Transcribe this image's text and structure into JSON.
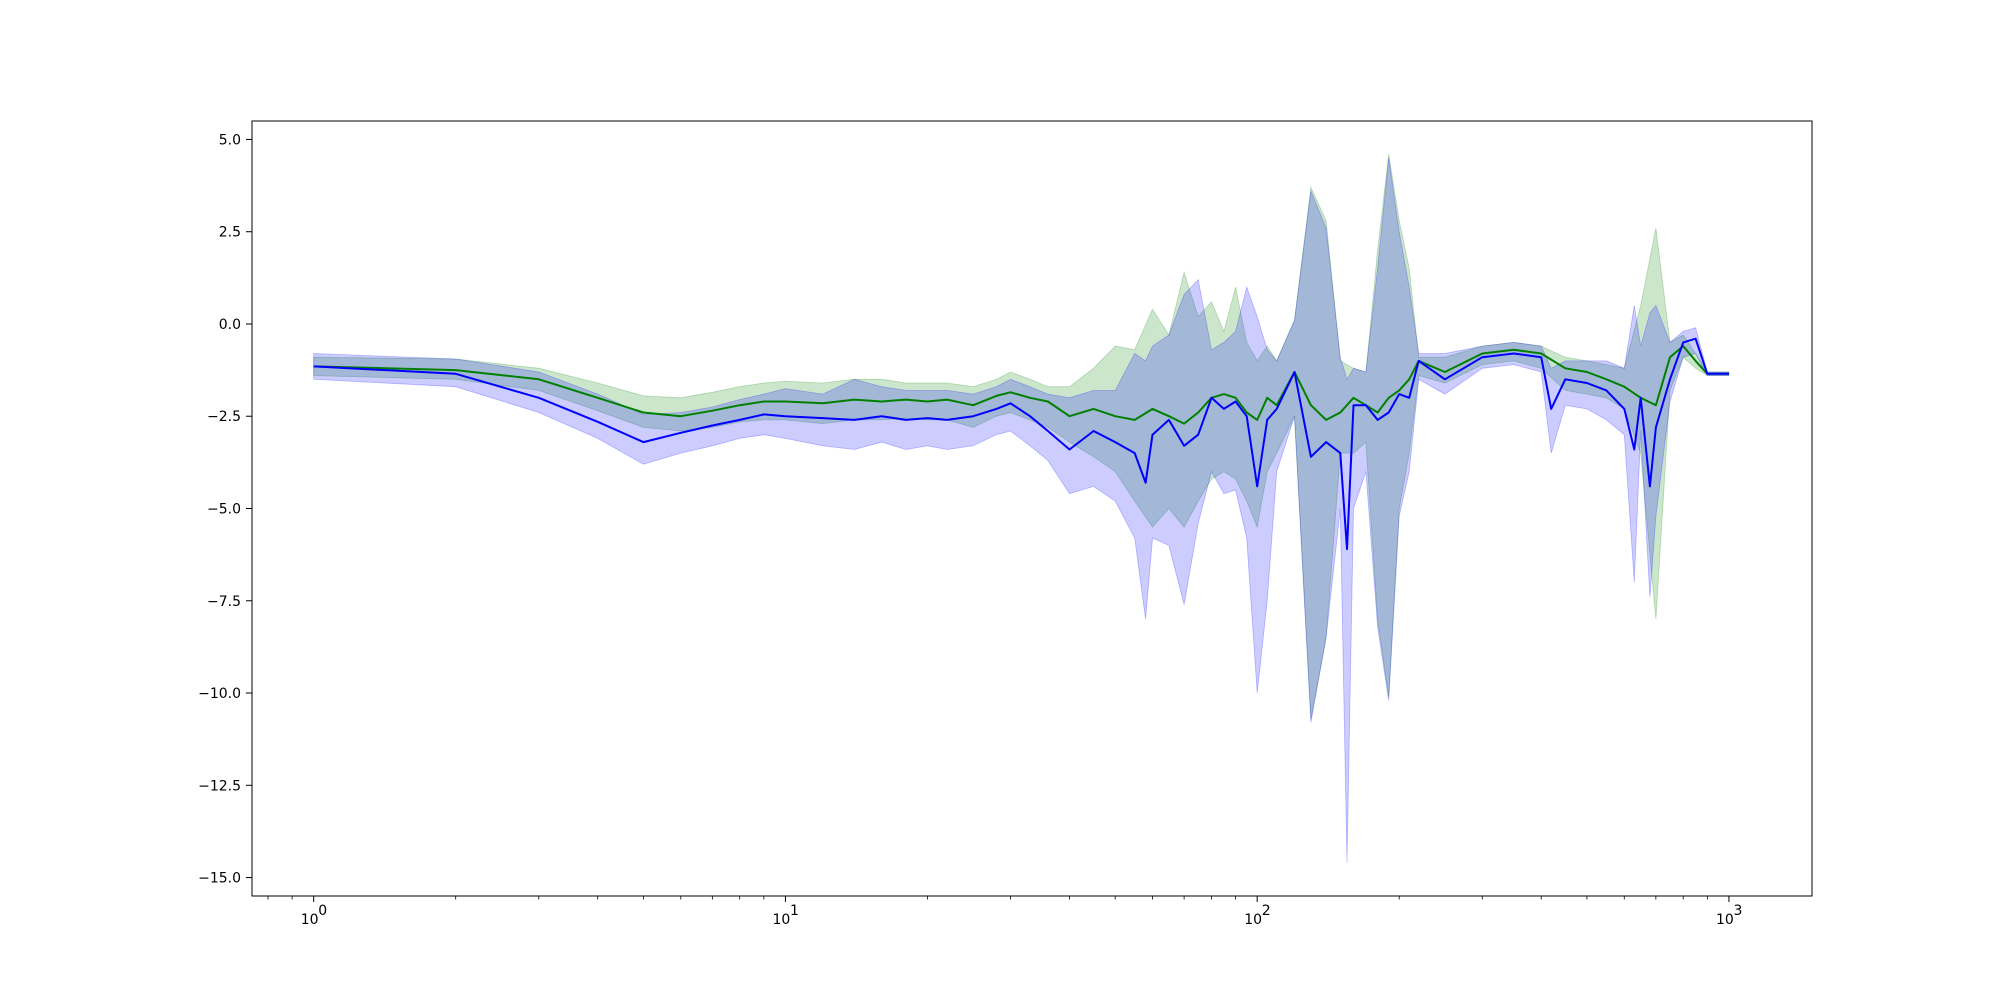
{
  "chart_data": {
    "type": "line",
    "title": "",
    "xlabel": "",
    "ylabel": "",
    "x_scale": "log",
    "xlim": [
      0.74,
      1500
    ],
    "ylim": [
      -15.5,
      5.5
    ],
    "grid": false,
    "legend": "none",
    "x_ticks": [
      {
        "value": 1,
        "label": "10",
        "exp": "0"
      },
      {
        "value": 10,
        "label": "10",
        "exp": "1"
      },
      {
        "value": 100,
        "label": "10",
        "exp": "2"
      },
      {
        "value": 1000,
        "label": "10",
        "exp": "3"
      }
    ],
    "y_ticks": [
      {
        "value": 5.0,
        "label": "5.0"
      },
      {
        "value": 2.5,
        "label": "2.5"
      },
      {
        "value": 0.0,
        "label": "0.0"
      },
      {
        "value": -2.5,
        "label": "−2.5"
      },
      {
        "value": -5.0,
        "label": "−5.0"
      },
      {
        "value": -7.5,
        "label": "−7.5"
      },
      {
        "value": -10.0,
        "label": "−10.0"
      },
      {
        "value": -12.5,
        "label": "−12.5"
      },
      {
        "value": -15.0,
        "label": "−15.0"
      }
    ],
    "series": [
      {
        "color": "#008000",
        "band_color": "#008000",
        "band_opacity": 0.2,
        "x": [
          1,
          2,
          3,
          4,
          5,
          6,
          7,
          8,
          9,
          10,
          12,
          14,
          16,
          18,
          20,
          22,
          25,
          28,
          30,
          33,
          36,
          40,
          45,
          50,
          55,
          60,
          65,
          70,
          75,
          80,
          85,
          90,
          95,
          100,
          105,
          110,
          120,
          130,
          140,
          150,
          160,
          170,
          180,
          190,
          200,
          210,
          220,
          250,
          300,
          350,
          400,
          450,
          500,
          550,
          600,
          650,
          700,
          750,
          800,
          850,
          900,
          1000
        ],
        "y": [
          -1.15,
          -1.25,
          -1.5,
          -2.0,
          -2.4,
          -2.5,
          -2.35,
          -2.2,
          -2.1,
          -2.1,
          -2.15,
          -2.05,
          -2.1,
          -2.05,
          -2.1,
          -2.05,
          -2.2,
          -1.95,
          -1.85,
          -2.0,
          -2.1,
          -2.5,
          -2.3,
          -2.5,
          -2.6,
          -2.3,
          -2.5,
          -2.7,
          -2.4,
          -2.0,
          -1.9,
          -2.0,
          -2.4,
          -2.6,
          -2.0,
          -2.2,
          -1.3,
          -2.2,
          -2.6,
          -2.4,
          -2.0,
          -2.2,
          -2.4,
          -2.0,
          -1.8,
          -1.5,
          -1.0,
          -1.3,
          -0.8,
          -0.7,
          -0.8,
          -1.2,
          -1.3,
          -1.5,
          -1.7,
          -2.0,
          -2.2,
          -0.9,
          -0.6,
          -1.0,
          -1.35,
          -1.35
        ],
        "upper": [
          -0.9,
          -0.95,
          -1.2,
          -1.6,
          -1.95,
          -2.0,
          -1.85,
          -1.7,
          -1.6,
          -1.55,
          -1.6,
          -1.5,
          -1.5,
          -1.6,
          -1.6,
          -1.6,
          -1.7,
          -1.5,
          -1.3,
          -1.5,
          -1.7,
          -1.7,
          -1.2,
          -0.6,
          -0.7,
          0.4,
          -0.3,
          1.4,
          0.2,
          0.6,
          -0.2,
          1.0,
          -0.5,
          -1.0,
          -0.6,
          -1.0,
          0.1,
          3.7,
          2.8,
          -1.0,
          -1.2,
          -1.3,
          2.0,
          4.6,
          2.8,
          1.5,
          -0.9,
          -0.9,
          -0.6,
          -0.5,
          -0.6,
          -0.9,
          -1.0,
          -1.1,
          -1.2,
          0.5,
          2.6,
          -0.5,
          -0.3,
          -0.8,
          -1.3,
          -1.3
        ],
        "lower": [
          -1.4,
          -1.5,
          -1.8,
          -2.35,
          -2.8,
          -2.9,
          -2.8,
          -2.65,
          -2.6,
          -2.6,
          -2.7,
          -2.6,
          -2.6,
          -2.55,
          -2.6,
          -2.6,
          -2.8,
          -2.5,
          -2.4,
          -2.6,
          -2.8,
          -3.2,
          -3.6,
          -4.0,
          -4.8,
          -5.5,
          -5.0,
          -5.5,
          -4.8,
          -4.2,
          -4.0,
          -4.2,
          -4.8,
          -5.5,
          -4.0,
          -3.5,
          -2.5,
          -10.7,
          -8.5,
          -3.5,
          -3.5,
          -3.2,
          -8.0,
          -10.1,
          -5.0,
          -3.5,
          -1.4,
          -1.6,
          -1.1,
          -1.0,
          -1.2,
          -1.8,
          -1.9,
          -2.0,
          -2.3,
          -3.5,
          -8.0,
          -1.8,
          -0.9,
          -1.2,
          -1.4,
          -1.4
        ]
      },
      {
        "color": "#0000ff",
        "band_color": "#0000ff",
        "band_opacity": 0.2,
        "x": [
          1,
          2,
          3,
          4,
          5,
          6,
          7,
          8,
          9,
          10,
          12,
          14,
          16,
          18,
          20,
          22,
          25,
          28,
          30,
          33,
          36,
          40,
          45,
          50,
          55,
          58,
          60,
          65,
          70,
          75,
          80,
          85,
          90,
          95,
          100,
          105,
          110,
          120,
          130,
          140,
          150,
          155,
          160,
          170,
          180,
          190,
          200,
          210,
          220,
          250,
          300,
          350,
          400,
          420,
          450,
          500,
          550,
          600,
          630,
          650,
          680,
          700,
          750,
          800,
          850,
          900,
          1000
        ],
        "y": [
          -1.15,
          -1.35,
          -2.0,
          -2.65,
          -3.2,
          -2.95,
          -2.75,
          -2.6,
          -2.45,
          -2.5,
          -2.55,
          -2.6,
          -2.5,
          -2.6,
          -2.55,
          -2.6,
          -2.5,
          -2.3,
          -2.15,
          -2.5,
          -2.9,
          -3.4,
          -2.9,
          -3.2,
          -3.5,
          -4.3,
          -3.0,
          -2.6,
          -3.3,
          -3.0,
          -2.0,
          -2.3,
          -2.1,
          -2.5,
          -4.4,
          -2.6,
          -2.3,
          -1.3,
          -3.6,
          -3.2,
          -3.5,
          -6.1,
          -2.2,
          -2.2,
          -2.6,
          -2.4,
          -1.9,
          -2.0,
          -1.0,
          -1.5,
          -0.9,
          -0.8,
          -0.9,
          -2.3,
          -1.5,
          -1.6,
          -1.8,
          -2.3,
          -3.4,
          -2.0,
          -4.4,
          -2.8,
          -1.5,
          -0.5,
          -0.4,
          -1.35,
          -1.35
        ],
        "upper": [
          -0.8,
          -0.95,
          -1.3,
          -1.9,
          -2.45,
          -2.4,
          -2.25,
          -2.05,
          -1.9,
          -1.75,
          -1.9,
          -1.5,
          -1.7,
          -1.8,
          -1.8,
          -1.8,
          -1.9,
          -1.7,
          -1.5,
          -1.7,
          -1.9,
          -2.0,
          -1.8,
          -1.8,
          -0.8,
          -1.0,
          -0.6,
          -0.3,
          0.8,
          1.2,
          -0.7,
          -0.5,
          -0.2,
          1.0,
          0.2,
          -0.7,
          -1.0,
          0.1,
          3.6,
          2.6,
          -0.9,
          -1.5,
          -1.2,
          -1.3,
          1.5,
          4.5,
          2.5,
          1.0,
          -0.8,
          -0.8,
          -0.6,
          -0.5,
          -0.6,
          -1.2,
          -1.0,
          -1.0,
          -1.0,
          -1.2,
          0.5,
          -0.6,
          0.3,
          0.5,
          -0.5,
          -0.2,
          -0.1,
          -1.3,
          -1.3
        ],
        "lower": [
          -1.5,
          -1.7,
          -2.4,
          -3.1,
          -3.8,
          -3.5,
          -3.3,
          -3.1,
          -3.0,
          -3.1,
          -3.3,
          -3.4,
          -3.2,
          -3.4,
          -3.3,
          -3.4,
          -3.3,
          -3.0,
          -2.9,
          -3.3,
          -3.7,
          -4.6,
          -4.4,
          -4.8,
          -5.8,
          -8.0,
          -5.8,
          -6.0,
          -7.6,
          -5.4,
          -4.0,
          -4.6,
          -4.5,
          -5.8,
          -10.0,
          -7.5,
          -4.0,
          -2.5,
          -10.8,
          -8.5,
          -5.0,
          -14.6,
          -5.0,
          -4.0,
          -8.2,
          -10.2,
          -5.2,
          -4.0,
          -1.5,
          -1.9,
          -1.2,
          -1.1,
          -1.3,
          -3.5,
          -2.2,
          -2.3,
          -2.6,
          -3.0,
          -7.0,
          -2.9,
          -7.4,
          -5.2,
          -2.1,
          -0.9,
          -0.8,
          -1.4,
          -1.4
        ]
      }
    ]
  }
}
